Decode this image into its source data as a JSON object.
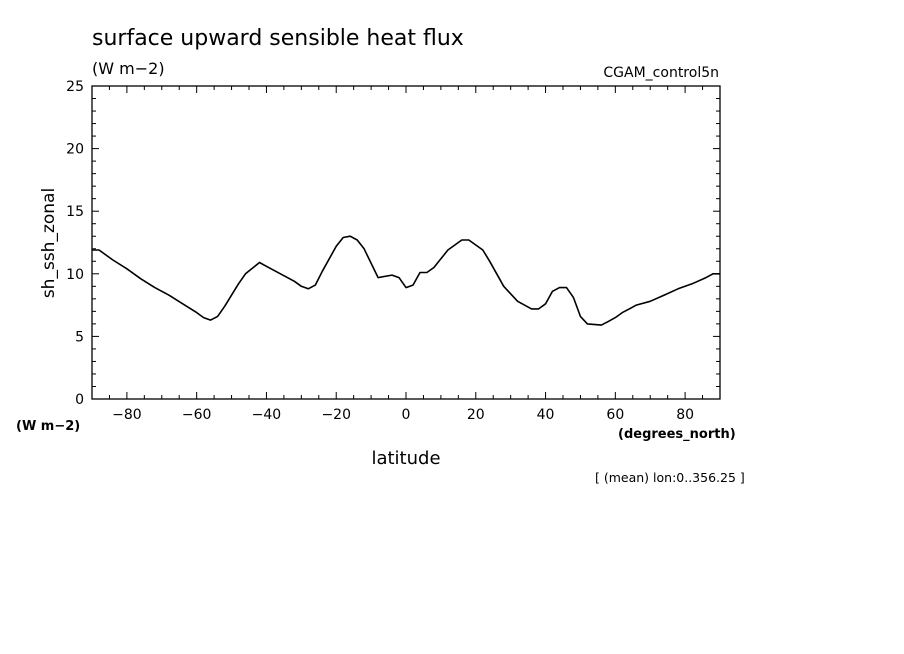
{
  "chart_data": {
    "type": "line",
    "title": "surface upward sensible heat flux",
    "units_label": "(W m−2)",
    "run_label": "CGAM_control5n",
    "ylabel": "sh_ssh_zonal",
    "ylabel_units": "(W m−2)",
    "xlabel": "latitude",
    "xlabel_units": "(degrees_north)",
    "footnote": "[ (mean) lon:0..356.25 ]",
    "xlim": [
      -90,
      90
    ],
    "ylim": [
      0,
      25
    ],
    "xticks": [
      -80,
      -60,
      -40,
      -20,
      0,
      20,
      40,
      60,
      80
    ],
    "xtick_labels": [
      "−80",
      "−60",
      "−40",
      "−20",
      "0",
      "20",
      "40",
      "60",
      "80"
    ],
    "yticks": [
      0,
      5,
      10,
      15,
      20,
      25
    ],
    "ytick_labels": [
      "0",
      "5",
      "10",
      "15",
      "20",
      "25"
    ],
    "grid": false,
    "series": [
      {
        "x": [
          -90,
          -88,
          -84,
          -80,
          -76,
          -72,
          -68,
          -64,
          -60,
          -58,
          -56,
          -54,
          -52,
          -48,
          -46,
          -42,
          -40,
          -36,
          -32,
          -30,
          -28,
          -26,
          -24,
          -20,
          -18,
          -16,
          -14,
          -12,
          -8,
          -4,
          -2,
          0,
          2,
          4,
          6,
          8,
          10,
          12,
          16,
          18,
          20,
          22,
          24,
          26,
          28,
          32,
          36,
          38,
          40,
          42,
          44,
          46,
          48,
          50,
          52,
          56,
          58,
          60,
          62,
          64,
          66,
          70,
          74,
          78,
          82,
          86,
          88,
          90
        ],
        "y": [
          11.9,
          11.9,
          11.1,
          10.4,
          9.6,
          8.9,
          8.3,
          7.6,
          6.9,
          6.5,
          6.3,
          6.6,
          7.4,
          9.2,
          10.0,
          10.9,
          10.6,
          10.0,
          9.4,
          9.0,
          8.8,
          9.1,
          10.2,
          12.2,
          12.9,
          13.0,
          12.7,
          12.0,
          9.7,
          9.9,
          9.7,
          8.9,
          9.1,
          10.1,
          10.1,
          10.5,
          11.2,
          11.9,
          12.7,
          12.7,
          12.3,
          11.9,
          11.0,
          10.0,
          9.0,
          7.8,
          7.2,
          7.2,
          7.6,
          8.6,
          8.9,
          8.9,
          8.1,
          6.6,
          6.0,
          5.9,
          6.2,
          6.5,
          6.9,
          7.2,
          7.5,
          7.8,
          8.3,
          8.8,
          9.2,
          9.7,
          10.0,
          10.0
        ]
      }
    ]
  }
}
